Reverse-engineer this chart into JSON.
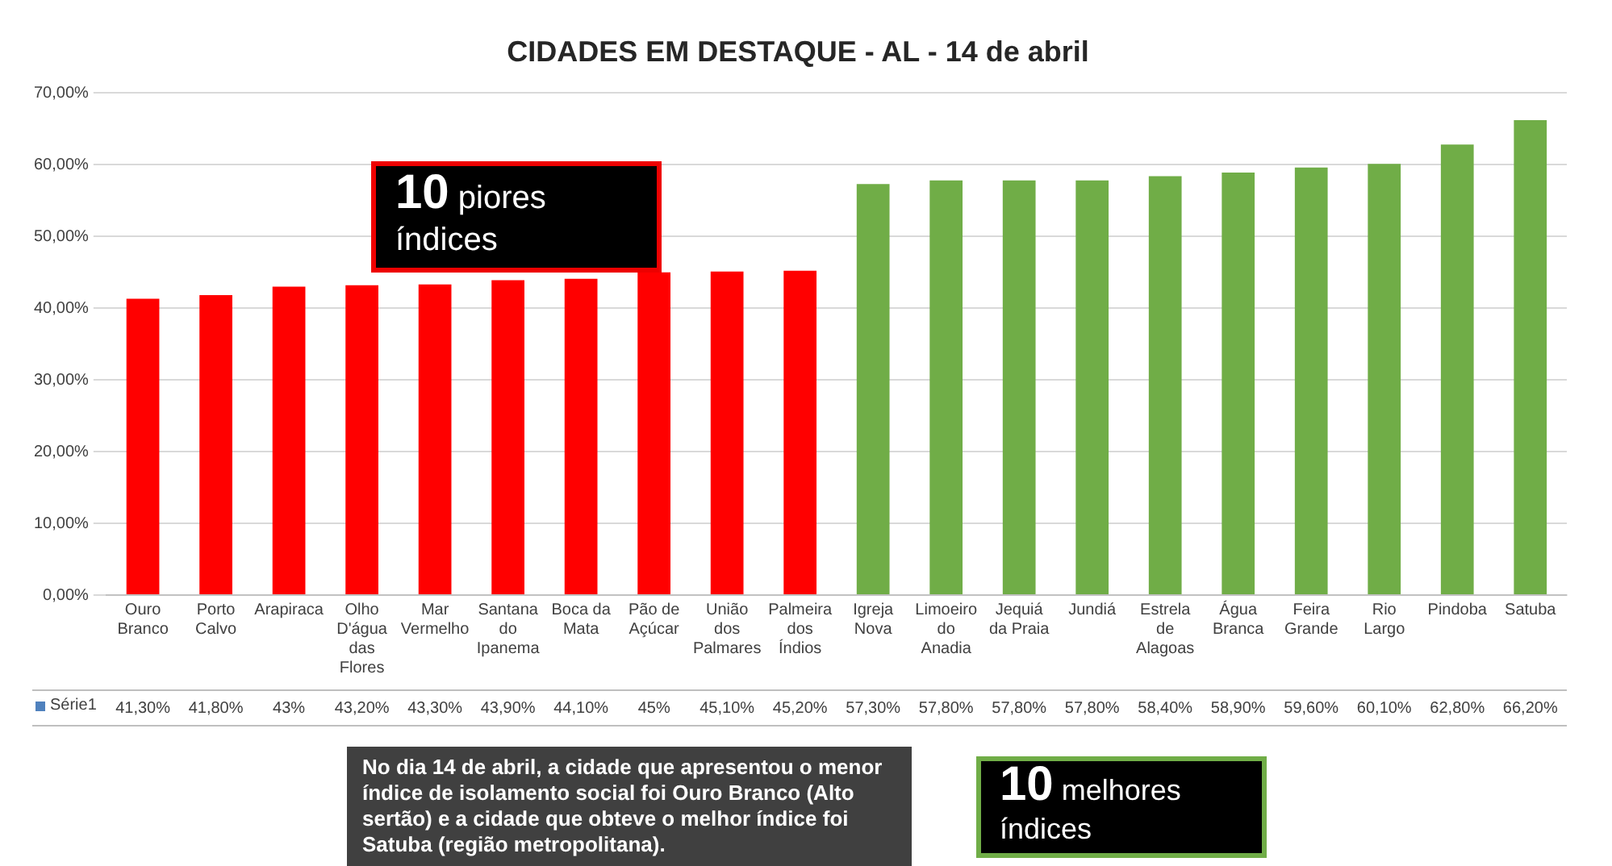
{
  "chart_data": {
    "type": "bar",
    "title": "CIDADES EM DESTAQUE - AL - 14 de abril",
    "categories": [
      "Ouro Branco",
      "Porto Calvo",
      "Arapiraca",
      "Olho D'água das Flores",
      "Mar Vermelho",
      "Santana do Ipanema",
      "Boca da Mata",
      "Pão de Açúcar",
      "União dos Palmares",
      "Palmeira dos Índios",
      "Igreja Nova",
      "Limoeiro do Anadia",
      "Jequiá da Praia",
      "Jundiá",
      "Estrela de Alagoas",
      "Água Branca",
      "Feira Grande",
      "Rio Largo",
      "Pindoba",
      "Satuba"
    ],
    "series": [
      {
        "name": "Série1",
        "color": "#4f81bd",
        "colors": [
          "#ff0000",
          "#ff0000",
          "#ff0000",
          "#ff0000",
          "#ff0000",
          "#ff0000",
          "#ff0000",
          "#ff0000",
          "#ff0000",
          "#ff0000",
          "#70ad47",
          "#70ad47",
          "#70ad47",
          "#70ad47",
          "#70ad47",
          "#70ad47",
          "#70ad47",
          "#70ad47",
          "#70ad47",
          "#70ad47"
        ],
        "values": [
          41.3,
          41.8,
          43,
          43.2,
          43.3,
          43.9,
          44.1,
          45,
          45.1,
          45.2,
          57.3,
          57.8,
          57.8,
          57.8,
          58.4,
          58.9,
          59.6,
          60.1,
          62.8,
          66.2
        ],
        "value_labels": [
          "41,30%",
          "41,80%",
          "43%",
          "43,20%",
          "43,30%",
          "43,90%",
          "44,10%",
          "45%",
          "45,10%",
          "45,20%",
          "57,30%",
          "57,80%",
          "57,80%",
          "57,80%",
          "58,40%",
          "58,90%",
          "59,60%",
          "60,10%",
          "62,80%",
          "66,20%"
        ]
      }
    ],
    "ylim": [
      0,
      70
    ],
    "yticks": [
      {
        "value": 0,
        "label": "0,00%"
      },
      {
        "value": 10,
        "label": "10,00%"
      },
      {
        "value": 20,
        "label": "20,00%"
      },
      {
        "value": 30,
        "label": "30,00%"
      },
      {
        "value": 40,
        "label": "40,00%"
      },
      {
        "value": 50,
        "label": "50,00%"
      },
      {
        "value": 60,
        "label": "60,00%"
      },
      {
        "value": 70,
        "label": "70,00%"
      }
    ],
    "grid": "y",
    "legend": "bottom left",
    "annotations": [
      "10 piores índices",
      "10 melhores índices",
      "No dia 14 de abril, a cidade que apresentou o menor índice de isolamento social foi Ouro Branco (Alto sertão) e a cidade que obteve o melhor índice foi Satuba (região metropolitana)."
    ]
  }
}
